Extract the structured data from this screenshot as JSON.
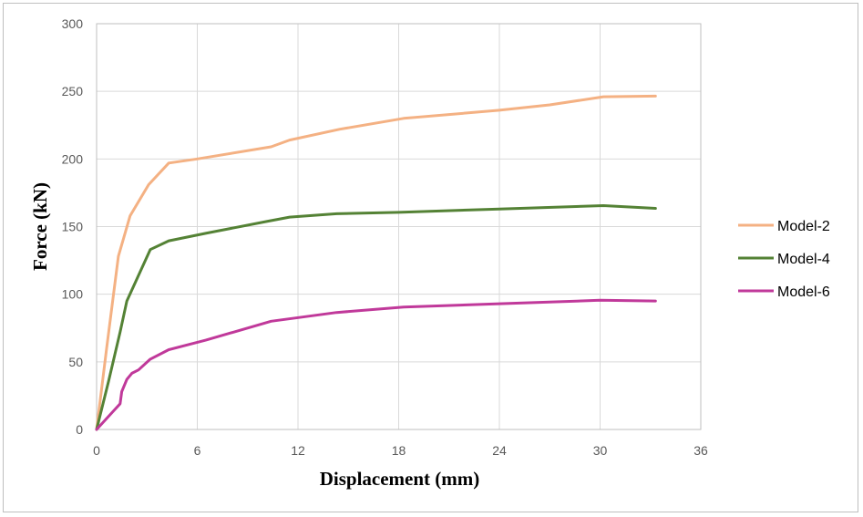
{
  "chart_data": {
    "type": "line",
    "title": "",
    "xlabel": "Displacement (mm)",
    "ylabel": "Force (kN)",
    "xlim": [
      0,
      36
    ],
    "ylim": [
      0,
      300
    ],
    "xticks": [
      "0",
      "6",
      "12",
      "18",
      "24",
      "30",
      "36"
    ],
    "yticks": [
      "0",
      "50",
      "100",
      "150",
      "200",
      "250",
      "300"
    ],
    "grid": true,
    "legend_position": "right",
    "series": [
      {
        "name": "Model-2",
        "color": "#f4b183",
        "points": [
          [
            0,
            0
          ],
          [
            0.6,
            60
          ],
          [
            1.3,
            128
          ],
          [
            2.0,
            158
          ],
          [
            3.1,
            181
          ],
          [
            4.3,
            197
          ],
          [
            6.0,
            200
          ],
          [
            10.4,
            209
          ],
          [
            11.5,
            214
          ],
          [
            14.5,
            222
          ],
          [
            18.3,
            230
          ],
          [
            24.0,
            236
          ],
          [
            27.0,
            240
          ],
          [
            30.2,
            246
          ],
          [
            33.3,
            246.5
          ]
        ]
      },
      {
        "name": "Model-4",
        "color": "#548235",
        "points": [
          [
            0,
            0
          ],
          [
            0.7,
            35
          ],
          [
            1.4,
            72
          ],
          [
            1.8,
            95
          ],
          [
            3.2,
            133
          ],
          [
            4.3,
            139.5
          ],
          [
            6.5,
            145
          ],
          [
            10.2,
            154
          ],
          [
            11.5,
            157
          ],
          [
            14.3,
            159.5
          ],
          [
            18.0,
            160.5
          ],
          [
            24.0,
            163
          ],
          [
            30.2,
            165.5
          ],
          [
            33.3,
            163.5
          ]
        ]
      },
      {
        "name": "Model-6",
        "color": "#c0399a",
        "points": [
          [
            0,
            0
          ],
          [
            1.4,
            19
          ],
          [
            1.5,
            28
          ],
          [
            1.8,
            37
          ],
          [
            2.1,
            41.5
          ],
          [
            2.5,
            44
          ],
          [
            3.2,
            52
          ],
          [
            4.3,
            59
          ],
          [
            6.5,
            66
          ],
          [
            10.4,
            80
          ],
          [
            14.3,
            86.5
          ],
          [
            18.3,
            90.5
          ],
          [
            24.0,
            93
          ],
          [
            30.0,
            95.5
          ],
          [
            33.3,
            95
          ]
        ]
      }
    ]
  }
}
